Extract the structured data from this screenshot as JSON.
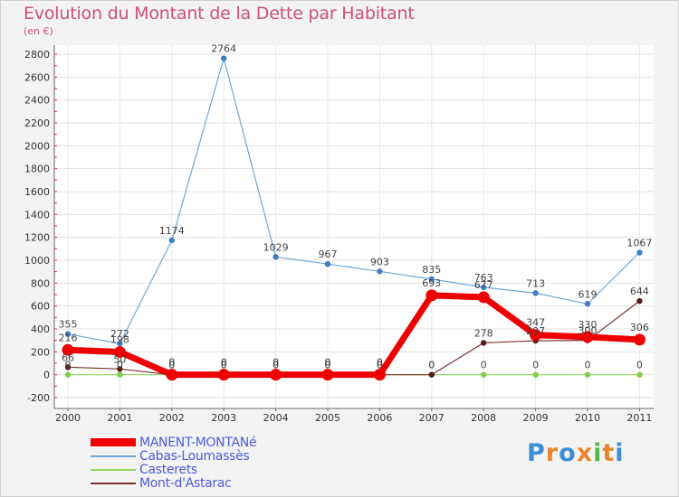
{
  "chart_data": {
    "type": "line",
    "title": "Evolution du Montant de la Dette par Habitant",
    "subtitle": "(en €)",
    "xlabel": "",
    "ylabel": "",
    "ylim": [
      -200,
      2800
    ],
    "yticks": [
      -200,
      0,
      200,
      400,
      600,
      800,
      1000,
      1200,
      1400,
      1600,
      1800,
      2000,
      2200,
      2400,
      2600,
      2800
    ],
    "categories": [
      "2000",
      "2001",
      "2002",
      "2003",
      "2004",
      "2005",
      "2006",
      "2007",
      "2008",
      "2009",
      "2010",
      "2011"
    ],
    "grid": true,
    "series": [
      {
        "name": "MANENT-MONTANé",
        "color": "#ee0000",
        "values": [
          216,
          198,
          0,
          0,
          0,
          0,
          0,
          693,
          677,
          347,
          330,
          306
        ],
        "labels": [
          "216",
          "198",
          "0",
          "0",
          "0",
          "0",
          "0",
          "693",
          "677",
          "347",
          "330",
          "306"
        ]
      },
      {
        "name": "Cabas-Loumassès",
        "color": "#6fa8d6",
        "values": [
          355,
          272,
          1174,
          2764,
          1029,
          967,
          903,
          835,
          763,
          713,
          619,
          1067
        ],
        "labels": [
          "355",
          "272",
          "1174",
          "2764",
          "1029",
          "967",
          "903",
          "835",
          "763",
          "713",
          "619",
          "1067"
        ]
      },
      {
        "name": "Casterets",
        "color": "#8ed65a",
        "values": [
          0,
          0,
          0,
          0,
          0,
          0,
          0,
          0,
          0,
          0,
          0,
          0
        ],
        "labels": [
          "0",
          "0",
          "0",
          "0",
          "0",
          "0",
          "0",
          "0",
          "0",
          "0",
          "0",
          "0"
        ]
      },
      {
        "name": "Mont-d'Astarac",
        "color": "#7a2e2e",
        "values": [
          66,
          50,
          0,
          0,
          0,
          0,
          0,
          0,
          278,
          297,
          300,
          644
        ],
        "labels": [
          "66",
          "50",
          "0",
          "0",
          "0",
          "0",
          "0",
          "0",
          "278",
          "297",
          "300",
          "644"
        ]
      }
    ]
  },
  "logo": {
    "letters": [
      "P",
      "r",
      "o",
      "x",
      "i",
      "t",
      "i"
    ]
  }
}
